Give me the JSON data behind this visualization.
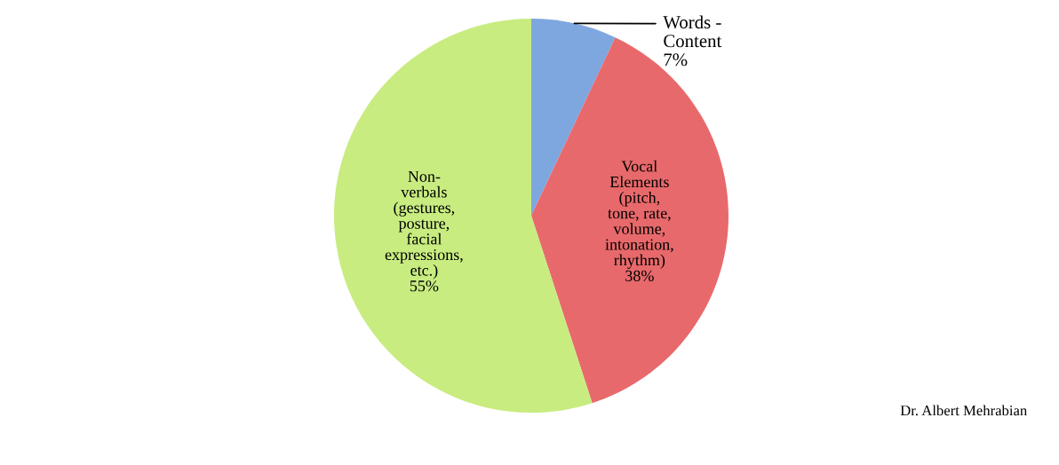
{
  "chart_data": {
    "type": "pie",
    "categories": [
      "Words -\nContent",
      "Vocal\nElements\n(pitch,\ntone, rate,\nvolume,\nintonation,\nrhythm)",
      "Non-\nverbals\n(gestures,\nposture,\nfacial\nexpressions,\netc.)"
    ],
    "values": [
      7,
      38,
      55
    ],
    "value_labels": [
      "7%",
      "38%",
      "55%"
    ],
    "colors": [
      "#7ea7e0",
      "#e8696b",
      "#c8ec80"
    ],
    "annotations": [
      "Dr. Albert Mehrabian"
    ]
  }
}
